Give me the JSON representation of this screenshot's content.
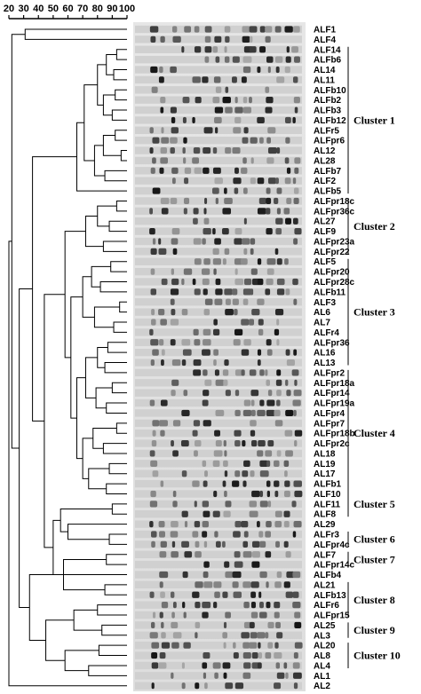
{
  "scale": {
    "ticks": [
      "20",
      "30",
      "40",
      "50",
      "60",
      "70",
      "80",
      "90",
      "100"
    ],
    "min": 20,
    "max": 100
  },
  "strains": [
    "ALF1",
    "ALF4",
    "ALF14",
    "ALFb6",
    "AL14",
    "AL11",
    "ALFb10",
    "ALFb2",
    "ALFb3",
    "ALFb12",
    "ALFr5",
    "ALFpr6",
    "AL12",
    "AL28",
    "ALFb7",
    "ALF2",
    "ALFb5",
    "ALFpr18c",
    "ALFpr36c",
    "AL27",
    "ALF9",
    "ALFpr23a",
    "ALFpr22",
    "ALF5",
    "ALFpr20",
    "ALFpr28c",
    "ALFb11",
    "ALF3",
    "AL6",
    "AL7",
    "ALFr4",
    "ALFpr36",
    "AL16",
    "AL13",
    "ALFpr2",
    "ALFpr18a",
    "ALFpr14",
    "ALFpr19a",
    "ALFpr4",
    "ALFpr7",
    "ALFpr18b",
    "ALFpr2c",
    "AL18",
    "AL19",
    "AL17",
    "ALFb1",
    "ALF10",
    "ALF11",
    "ALF8",
    "AL29",
    "ALFr3",
    "ALFpr4c",
    "ALF7",
    "ALFpr14c",
    "ALFb4",
    "AL21",
    "ALFb13",
    "ALFr6",
    "ALFpr15",
    "AL25",
    "AL3",
    "AL20",
    "AL8",
    "AL4",
    "AL1",
    "AL2"
  ],
  "clusters": [
    {
      "label": "Cluster 1",
      "first": 2,
      "last": 16
    },
    {
      "label": "Cluster 2",
      "first": 17,
      "last": 22
    },
    {
      "label": "Cluster 3",
      "first": 23,
      "last": 33
    },
    {
      "label": "Cluster 4",
      "first": 34,
      "last": 46
    },
    {
      "label": "Cluster 5",
      "first": 46,
      "last": 48
    },
    {
      "label": "Cluster 6",
      "first": 50,
      "last": 51
    },
    {
      "label": "Cluster 7",
      "first": 52,
      "last": 53
    },
    {
      "label": "Cluster 8",
      "first": 55,
      "last": 58
    },
    {
      "label": "Cluster 9",
      "first": 59,
      "last": 60
    },
    {
      "label": "Cluster 10",
      "first": 61,
      "last": 63
    }
  ]
}
